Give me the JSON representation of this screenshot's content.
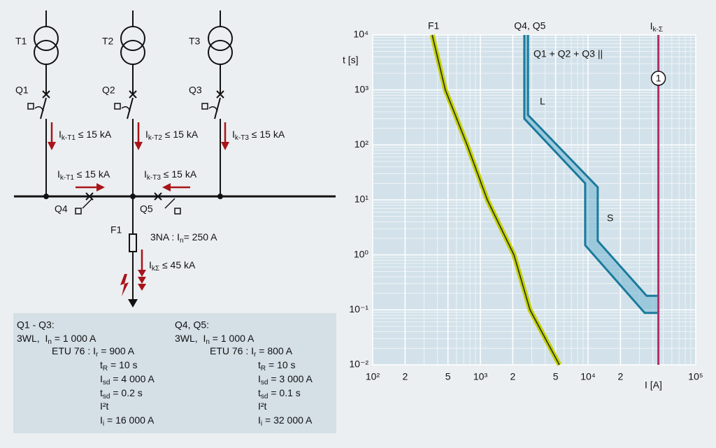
{
  "diagram": {
    "transformers": [
      {
        "label": "T1"
      },
      {
        "label": "T2"
      },
      {
        "label": "T3"
      }
    ],
    "breakers": [
      "Q1",
      "Q2",
      "Q3",
      "Q4",
      "Q5"
    ],
    "currents": [
      {
        "pre": "I",
        "sub": "k-T1",
        "post": " ≤ 15 kA"
      },
      {
        "pre": "I",
        "sub": "k-T2",
        "post": " ≤ 15 kA"
      },
      {
        "pre": "I",
        "sub": "k-T3",
        "post": " ≤ 15 kA"
      },
      {
        "pre": "I",
        "sub": "k-T1",
        "post": " ≤ 15 kA"
      },
      {
        "pre": "I",
        "sub": "k-T3",
        "post": " ≤ 15 kA"
      }
    ],
    "fuse": {
      "label": "F1",
      "rating": {
        "pre": "3NA : I",
        "sub": "n",
        "post": "= 250 A"
      }
    },
    "feeder_current": {
      "pre": "I",
      "sub": "kΣ",
      "post": " ≤ 45 kA"
    }
  },
  "settings": [
    {
      "title": "Q1 - Q3:",
      "lines": [
        {
          "pre": "3WL,  I",
          "sub": "n",
          "post": " = 1 000 A"
        },
        {
          "pre": "ETU 76 : I",
          "sub": "r",
          "post": " = 900 A"
        },
        {
          "pre": "t",
          "sub": "R",
          "post": " = 10 s"
        },
        {
          "pre": "I",
          "sub": "sd",
          "post": " = 4 000 A"
        },
        {
          "pre": "t",
          "sub": "sd",
          "post": " = 0.2 s"
        },
        {
          "pre": "I²t"
        },
        {
          "pre": "I",
          "sub": "i",
          "post": " = 16 000 A"
        }
      ]
    },
    {
      "title": "Q4, Q5:",
      "lines": [
        {
          "pre": "3WL,  I",
          "sub": "n",
          "post": " = 1 000 A"
        },
        {
          "pre": "ETU 76 : I",
          "sub": "r",
          "post": " = 800 A"
        },
        {
          "pre": "t",
          "sub": "R",
          "post": " = 10 s"
        },
        {
          "pre": "I",
          "sub": "sd",
          "post": " = 3 000 A"
        },
        {
          "pre": "t",
          "sub": "sd",
          "post": " = 0.1 s"
        },
        {
          "pre": "I²t"
        },
        {
          "pre": "I",
          "sub": "i",
          "post": " = 32 000 A"
        }
      ]
    }
  ],
  "chart_data": {
    "type": "line",
    "xlog": true,
    "ylog": true,
    "grid": true,
    "minor_grid": true,
    "x_label": "I [A]",
    "y_label": "t [s]",
    "xlim": [
      100,
      100000
    ],
    "ylim": [
      0.01,
      10000
    ],
    "xticks": [
      {
        "value": 100,
        "label": "10²"
      },
      {
        "value": 200,
        "label": "2"
      },
      {
        "value": 500,
        "label": "5"
      },
      {
        "value": 1000,
        "label": "10³"
      },
      {
        "value": 2000,
        "label": "2"
      },
      {
        "value": 5000,
        "label": "5"
      },
      {
        "value": 10000,
        "label": "10⁴"
      },
      {
        "value": 20000,
        "label": "2"
      },
      {
        "value": 100000,
        "label": "10⁵"
      }
    ],
    "yticks": [
      {
        "value": 0.01,
        "label": "10⁻²"
      },
      {
        "value": 0.1,
        "label": "10⁻¹"
      },
      {
        "value": 1,
        "label": "10⁰"
      },
      {
        "value": 10,
        "label": "10¹"
      },
      {
        "value": 100,
        "label": "10²"
      },
      {
        "value": 1000,
        "label": "10³"
      },
      {
        "value": 10000,
        "label": "10⁴"
      }
    ],
    "series": [
      {
        "name": "F1",
        "color": "#c3d100",
        "x": [
          357,
          473,
          753,
          1160,
          2050,
          2890,
          5420
        ],
        "values": [
          10000,
          1000,
          100,
          10,
          1,
          0.1,
          0.01
        ]
      },
      {
        "name": "Q4, Q5",
        "color": "#1a7a9c",
        "x": [
          2560,
          2560,
          9400,
          9400,
          33600,
          44000
        ],
        "values": [
          10000,
          300,
          20,
          1.5,
          0.088,
          0.088
        ],
        "x_upper": [
          2770,
          2770,
          12300,
          12300,
          35000,
          44000
        ],
        "values_upper": [
          10000,
          350,
          17,
          1.8,
          0.18,
          0.18
        ]
      }
    ],
    "vlines": [
      {
        "pre": "I",
        "sub": "k-Σ",
        "x": 45000,
        "color": "#b0306a",
        "marker": "1"
      }
    ],
    "annotations": [
      "Q1 + Q2 + Q3 ||",
      "L",
      "S"
    ]
  }
}
